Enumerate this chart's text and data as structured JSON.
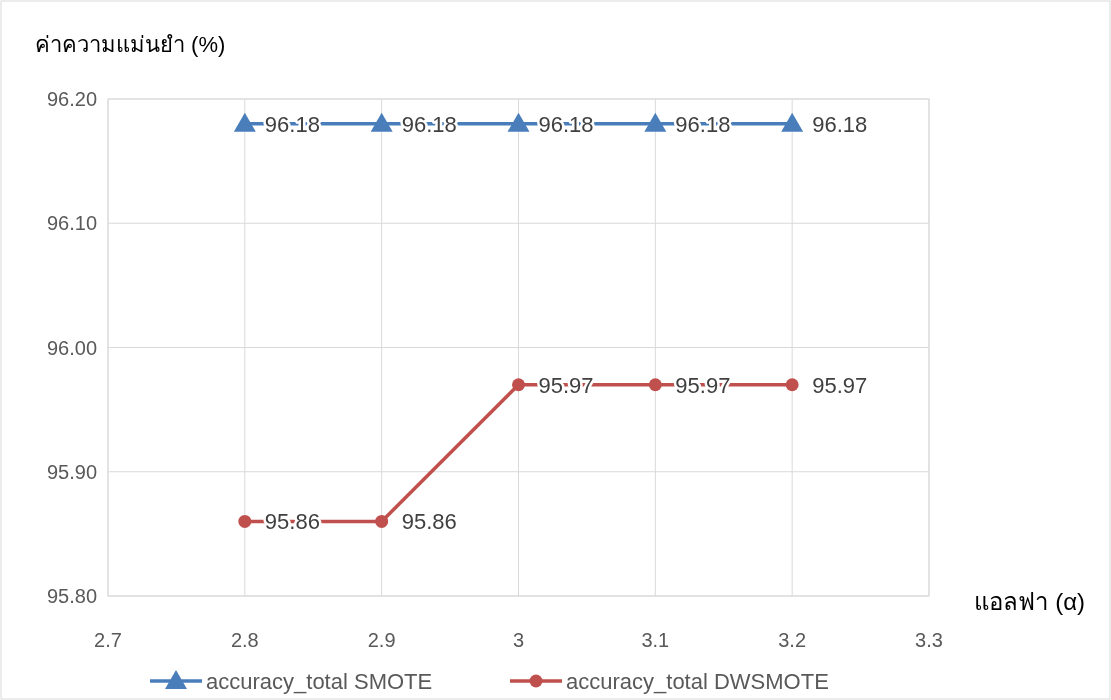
{
  "chart_data": {
    "type": "line",
    "ylabel": "ค่าความแม่นยำ (%)",
    "xlabel": "แอลฟา (α)",
    "x": [
      2.8,
      2.9,
      3,
      3.1,
      3.2
    ],
    "series": [
      {
        "name": "accuracy_total SMOTE",
        "color": "#4a7ebb",
        "marker": "triangle",
        "values": [
          96.18,
          96.18,
          96.18,
          96.18,
          96.18
        ]
      },
      {
        "name": "accuracy_total DWSMOTE",
        "color": "#c0504d",
        "marker": "circle",
        "values": [
          95.86,
          95.86,
          95.97,
          95.97,
          95.97
        ]
      }
    ],
    "xlim": [
      2.7,
      3.3
    ],
    "xticks": [
      2.7,
      2.8,
      2.9,
      3,
      3.1,
      3.2,
      3.3
    ],
    "ylim": [
      95.8,
      96.2
    ],
    "yticks": [
      {
        "value": 95.8,
        "label": "95.80"
      },
      {
        "value": 95.9,
        "label": "95.90"
      },
      {
        "value": 96.0,
        "label": "96.00"
      },
      {
        "value": 96.1,
        "label": "96.10"
      },
      {
        "value": 96.2,
        "label": "96.20"
      }
    ],
    "grid": true,
    "legend": "bottom",
    "data_labels": true,
    "line_style": "solid"
  }
}
